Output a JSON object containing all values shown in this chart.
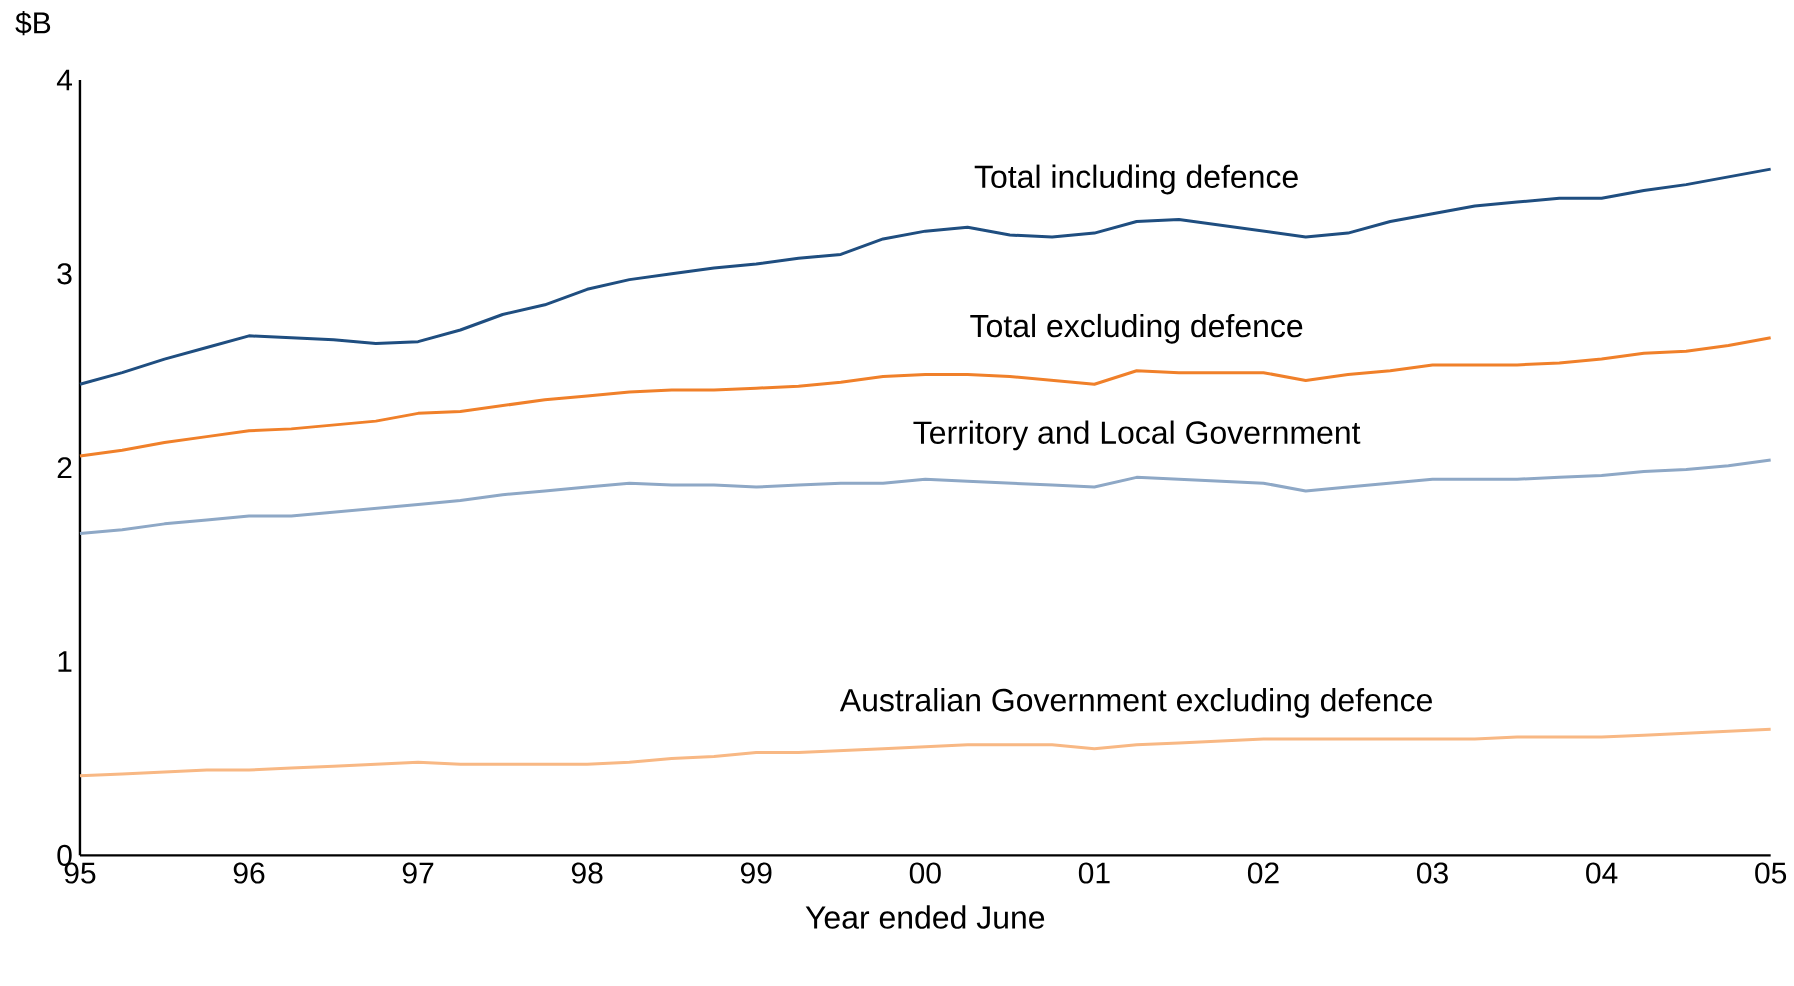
{
  "chart_data": {
    "type": "line",
    "xlabel": "Year ended June",
    "ylabel": "$B",
    "x": [
      1995,
      1995.25,
      1995.5,
      1995.75,
      1996,
      1996.25,
      1996.5,
      1996.75,
      1997,
      1997.25,
      1997.5,
      1997.75,
      1998,
      1998.25,
      1998.5,
      1998.75,
      1999,
      1999.25,
      1999.5,
      1999.75,
      2000,
      2000.25,
      2000.5,
      2000.75,
      2001,
      2001.25,
      2001.5,
      2001.75,
      2002,
      2002.25,
      2002.5,
      2002.75,
      2003,
      2003.25,
      2003.5,
      2003.75,
      2004,
      2004.25,
      2004.5,
      2004.75,
      2005
    ],
    "series": [
      {
        "name": "Total including defence",
        "color": "#1f4e80",
        "values": [
          2.43,
          2.49,
          2.56,
          2.62,
          2.68,
          2.67,
          2.66,
          2.64,
          2.65,
          2.71,
          2.79,
          2.84,
          2.92,
          2.97,
          3.0,
          3.03,
          3.05,
          3.08,
          3.1,
          3.18,
          3.22,
          3.24,
          3.2,
          3.19,
          3.21,
          3.27,
          3.28,
          3.25,
          3.22,
          3.19,
          3.21,
          3.27,
          3.31,
          3.35,
          3.37,
          3.39,
          3.39,
          3.43,
          3.46,
          3.5,
          3.54
        ]
      },
      {
        "name": "Total excluding defence",
        "color": "#f0802a",
        "values": [
          2.06,
          2.09,
          2.13,
          2.16,
          2.19,
          2.2,
          2.22,
          2.24,
          2.28,
          2.29,
          2.32,
          2.35,
          2.37,
          2.39,
          2.4,
          2.4,
          2.41,
          2.42,
          2.44,
          2.47,
          2.48,
          2.48,
          2.47,
          2.45,
          2.43,
          2.5,
          2.49,
          2.49,
          2.49,
          2.45,
          2.48,
          2.5,
          2.53,
          2.53,
          2.53,
          2.54,
          2.56,
          2.59,
          2.6,
          2.63,
          2.67
        ]
      },
      {
        "name": "Territory and Local Government",
        "color": "#8ea8c6",
        "values": [
          1.66,
          1.68,
          1.71,
          1.73,
          1.75,
          1.75,
          1.77,
          1.79,
          1.81,
          1.83,
          1.86,
          1.88,
          1.9,
          1.92,
          1.91,
          1.91,
          1.9,
          1.91,
          1.92,
          1.92,
          1.94,
          1.93,
          1.92,
          1.91,
          1.9,
          1.95,
          1.94,
          1.93,
          1.92,
          1.88,
          1.9,
          1.92,
          1.94,
          1.94,
          1.94,
          1.95,
          1.96,
          1.98,
          1.99,
          2.01,
          2.04
        ]
      },
      {
        "name": "Australian Government excluding defence",
        "color": "#f8b884",
        "values": [
          0.41,
          0.42,
          0.43,
          0.44,
          0.44,
          0.45,
          0.46,
          0.47,
          0.48,
          0.47,
          0.47,
          0.47,
          0.47,
          0.48,
          0.5,
          0.51,
          0.53,
          0.53,
          0.54,
          0.55,
          0.56,
          0.57,
          0.57,
          0.57,
          0.55,
          0.57,
          0.58,
          0.59,
          0.6,
          0.6,
          0.6,
          0.6,
          0.6,
          0.6,
          0.61,
          0.61,
          0.61,
          0.62,
          0.63,
          0.64,
          0.65
        ]
      }
    ],
    "xlim": [
      1995,
      2005
    ],
    "xticks": [
      {
        "value": 1995,
        "label": "95"
      },
      {
        "value": 1996,
        "label": "96"
      },
      {
        "value": 1997,
        "label": "97"
      },
      {
        "value": 1998,
        "label": "98"
      },
      {
        "value": 1999,
        "label": "99"
      },
      {
        "value": 2000,
        "label": "00"
      },
      {
        "value": 2001,
        "label": "01"
      },
      {
        "value": 2002,
        "label": "02"
      },
      {
        "value": 2003,
        "label": "03"
      },
      {
        "value": 2004,
        "label": "04"
      },
      {
        "value": 2005,
        "label": "05"
      }
    ],
    "ylim": [
      0,
      4
    ],
    "yticks": [
      0,
      1,
      2,
      3,
      4
    ],
    "grid": false,
    "legend": false,
    "marker": "none",
    "line_style": "solid"
  }
}
